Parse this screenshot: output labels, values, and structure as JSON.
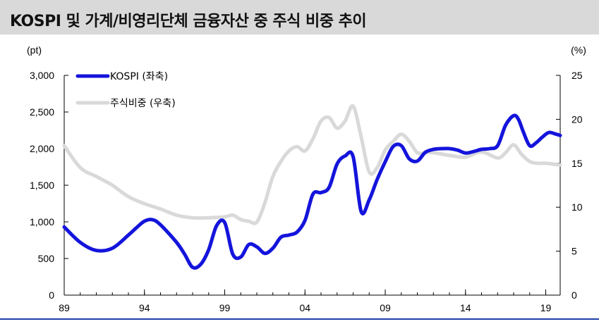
{
  "header": {
    "title": "KOSPI 및 가계/비영리단체 금융자산 중 주식 비중 추이",
    "title_bg": "#d9d9d9"
  },
  "chart_data": {
    "type": "line",
    "title": "KOSPI 및 가계/비영리단체 금융자산 중 주식 비중 추이",
    "y_left_unit": "(pt)",
    "y_right_unit": "(%)",
    "ylim_left": [
      0,
      3000
    ],
    "ylim_right": [
      0,
      25
    ],
    "xlim": [
      1989,
      2019.9
    ],
    "grid": false,
    "legend_position": "top-left",
    "x_tick_labels": [
      {
        "year": 1989,
        "label": "89"
      },
      {
        "year": 1994,
        "label": "94"
      },
      {
        "year": 1999,
        "label": "99"
      },
      {
        "year": 2004,
        "label": "04"
      },
      {
        "year": 2009,
        "label": "09"
      },
      {
        "year": 2014,
        "label": "14"
      },
      {
        "year": 2019,
        "label": "19"
      }
    ],
    "y_left_ticks": [
      {
        "value": 0,
        "label": "0"
      },
      {
        "value": 500,
        "label": "500"
      },
      {
        "value": 1000,
        "label": "1,000"
      },
      {
        "value": 1500,
        "label": "1,500"
      },
      {
        "value": 2000,
        "label": "2,000"
      },
      {
        "value": 2500,
        "label": "2,500"
      },
      {
        "value": 3000,
        "label": "3,000"
      }
    ],
    "y_right_ticks": [
      {
        "value": 0,
        "label": "0"
      },
      {
        "value": 5,
        "label": "5"
      },
      {
        "value": 10,
        "label": "10"
      },
      {
        "value": 15,
        "label": "15"
      },
      {
        "value": 20,
        "label": "20"
      },
      {
        "value": 25,
        "label": "25"
      }
    ],
    "series": [
      {
        "name": "KOSPI (좌축)",
        "axis": "left",
        "color": "#1414dc",
        "x": [
          1989.0,
          1990.0,
          1991.0,
          1992.0,
          1993.0,
          1993.5,
          1994.0,
          1994.5,
          1995.0,
          1996.0,
          1996.5,
          1997.0,
          1997.5,
          1998.0,
          1998.5,
          1999.0,
          1999.5,
          2000.0,
          2000.5,
          2001.0,
          2001.5,
          2002.0,
          2002.5,
          2003.0,
          2003.5,
          2004.0,
          2004.5,
          2005.0,
          2005.5,
          2006.0,
          2006.5,
          2007.0,
          2007.5,
          2008.0,
          2008.5,
          2009.0,
          2009.5,
          2010.0,
          2010.5,
          2011.0,
          2011.5,
          2012.0,
          2012.5,
          2013.0,
          2013.5,
          2014.0,
          2014.5,
          2015.0,
          2015.5,
          2016.0,
          2016.5,
          2017.0,
          2017.3,
          2017.6,
          2018.0,
          2018.4,
          2018.8,
          2019.2,
          2019.6,
          2019.9
        ],
        "y": [
          930,
          720,
          610,
          640,
          820,
          920,
          1010,
          1030,
          960,
          720,
          560,
          380,
          420,
          620,
          950,
          990,
          560,
          520,
          690,
          660,
          570,
          640,
          790,
          820,
          860,
          1020,
          1380,
          1400,
          1470,
          1790,
          1900,
          1890,
          1140,
          1300,
          1580,
          1820,
          2030,
          2040,
          1860,
          1830,
          1950,
          1990,
          2000,
          2000,
          1980,
          1940,
          1960,
          1990,
          2000,
          2040,
          2320,
          2450,
          2400,
          2230,
          2040,
          2080,
          2160,
          2220,
          2200,
          2180
        ]
      },
      {
        "name": "주식비중 (우축)",
        "axis": "right",
        "color": "#d9d9d9",
        "x": [
          1989.0,
          1990.0,
          1991.0,
          1992.0,
          1993.0,
          1994.0,
          1995.0,
          1996.0,
          1997.0,
          1998.0,
          1999.0,
          1999.5,
          2000.0,
          2000.5,
          2001.0,
          2001.5,
          2002.0,
          2002.5,
          2003.0,
          2003.5,
          2004.0,
          2004.5,
          2005.0,
          2005.5,
          2006.0,
          2006.5,
          2007.0,
          2007.5,
          2008.0,
          2008.5,
          2009.0,
          2009.5,
          2010.0,
          2010.5,
          2011.0,
          2011.5,
          2012.0,
          2013.0,
          2014.0,
          2015.0,
          2016.0,
          2016.5,
          2017.0,
          2017.5,
          2018.0,
          2018.5,
          2019.0,
          2019.9
        ],
        "y": [
          17.0,
          14.5,
          13.5,
          12.5,
          11.2,
          10.4,
          9.8,
          9.1,
          8.8,
          8.8,
          8.9,
          9.1,
          8.6,
          8.4,
          8.3,
          10.5,
          13.5,
          15.2,
          16.4,
          16.9,
          16.4,
          17.8,
          19.8,
          20.2,
          19.0,
          19.8,
          21.5,
          18.0,
          14.0,
          14.5,
          16.5,
          17.5,
          18.3,
          17.5,
          16.2,
          16.2,
          16.2,
          15.9,
          15.7,
          16.3,
          15.6,
          16.2,
          17.1,
          16.0,
          15.2,
          15.0,
          15.0,
          14.8
        ]
      }
    ]
  }
}
